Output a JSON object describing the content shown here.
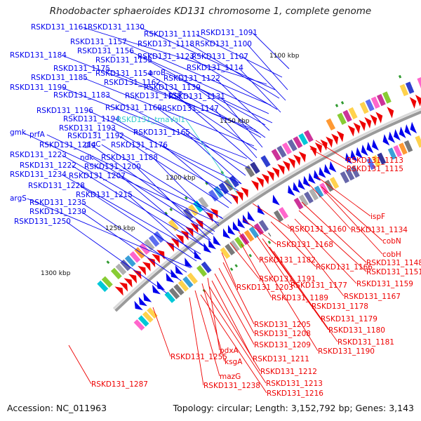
{
  "title": "Rhodobacter sphaeroides KD131 chromosome 1, complete genome",
  "footer": {
    "accession": "Accession: NC_011963",
    "summary": "Topology: circular; Length: 3,152,792 bp; Genes: 3,143"
  },
  "colors": {
    "forward_strand": "#0000ee",
    "reverse_strand": "#ee0000",
    "trna": "#33cccc",
    "backbone": "#9a9a9a"
  },
  "scale_ticks": [
    "1100 kbp",
    "1150 kbp",
    "1200 kbp",
    "1250 kbp",
    "1300 kbp"
  ],
  "forward_labels": [
    "RSKD131_1091",
    "RSKD131_1100",
    "RSKD131_1107",
    "RSKD131_1111",
    "RSKD131_1114",
    "RSKD131_1118",
    "RSKD131_1122",
    "RSKD131_1123",
    "RSKD131_1130",
    "RSKD131_1131",
    "RSKD131_1139",
    "RSKD131_1147",
    "RSKD131_1154",
    "RSKD131_1155",
    "RSKD131_1156",
    "RSKD131_1157",
    "RSKD131_1158",
    "RSKD131_1161",
    "RSKD131_1162",
    "RSKD131_1165",
    "RSKD131_1169",
    "RSKD131_1175",
    "RSKD131_1176",
    "RSKD131_1183",
    "RSKD131_1184",
    "RSKD131_1185",
    "RSKD131_1188",
    "RSKD131_1192",
    "RSKD131_1193",
    "RSKD131_1194",
    "RSKD131_1196",
    "RSKD131_1199",
    "RSKD131_1200",
    "RSKD131_1207",
    "RSKD131_1214",
    "RSKD131_1215",
    "RSKD131_1222",
    "RSKD131_1223",
    "RSKD131_1228",
    "RSKD131_1234",
    "RSKD131_1235",
    "RSKD131_1239",
    "RSKD131_1250",
    "aroB",
    "gmk",
    "prfA",
    "glgC",
    "ndk",
    "argS"
  ],
  "trna_labels": [
    "RSKD131_trnaVal1"
  ],
  "reverse_labels": [
    "RSKD131_1113",
    "RSKD131_1115",
    "ispF",
    "RSKD131_1134",
    "cobN",
    "cobH",
    "RSKD131_1148",
    "RSKD131_1151",
    "RSKD131_1159",
    "RSKD131_1160",
    "RSKD131_1166",
    "RSKD131_1167",
    "RSKD131_1168",
    "RSKD131_1177",
    "RSKD131_1178",
    "RSKD131_1179",
    "RSKD131_1180",
    "RSKD131_1181",
    "RSKD131_1182",
    "RSKD131_1189",
    "RSKD131_1190",
    "RSKD131_1191",
    "RSKD131_1203",
    "RSKD131_1205",
    "RSKD131_1208",
    "RSKD131_1209",
    "RSKD131_1211",
    "RSKD131_1212",
    "RSKD131_1213",
    "RSKD131_1216",
    "RSKD131_1238",
    "RSKD131_1255",
    "RSKD131_1287",
    "pdxA",
    "ksgA",
    "mazG"
  ]
}
